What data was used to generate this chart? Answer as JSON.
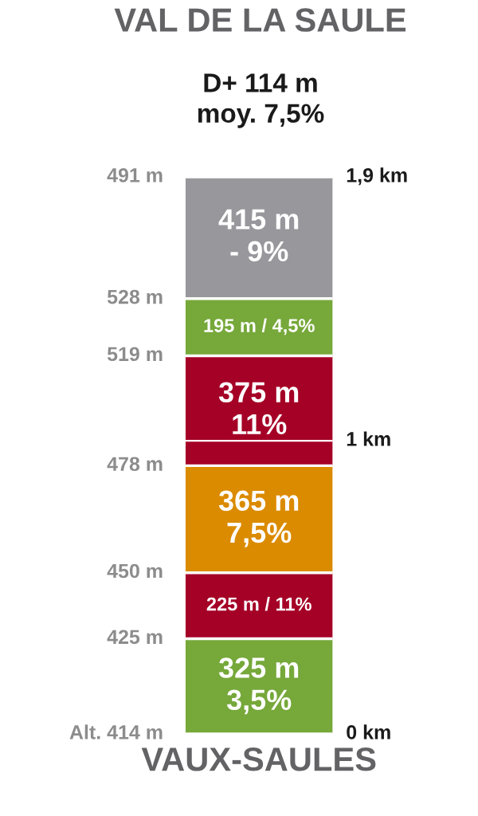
{
  "chart_data": {
    "type": "bar",
    "stacked": true,
    "title": "VAL DE LA SAULE",
    "subtitle": "D+ 114 m\nmoy. 7,5%",
    "xlabel": "VAUX-SAULES",
    "categories": [
      null
    ],
    "series": [
      {
        "color": "#76a83a",
        "values": [
          325
        ],
        "value_labels": [
          "325 m\n3,5%"
        ]
      },
      {
        "color": "#a50026",
        "values": [
          225
        ],
        "value_labels": [
          "225 m / 11%"
        ]
      },
      {
        "color": "#db8b00",
        "values": [
          365
        ],
        "value_labels": [
          "365 m\n7,5%"
        ]
      },
      {
        "color": "#a50026",
        "values": [
          375
        ],
        "value_labels": [
          "375 m\n11%"
        ]
      },
      {
        "color": "#76a83a",
        "values": [
          195
        ],
        "value_labels": [
          "195 m / 4,5%"
        ]
      },
      {
        "color": "#98979c",
        "values": [
          415
        ],
        "value_labels": [
          "415 m\n- 9%"
        ]
      }
    ],
    "ylim": [
      0,
      1900
    ],
    "ref_lines": [
      {
        "axis": "y",
        "value": 0,
        "label": "0 km"
      },
      {
        "axis": "y",
        "value": 1000,
        "label": "1 km"
      },
      {
        "axis": "y",
        "value": 1900,
        "label": "1,9 km"
      },
      {
        "axis": "y",
        "value": 0,
        "label": "Alt. 414 m",
        "color": "#ffffff"
      },
      {
        "axis": "y",
        "value": 325,
        "label": "425 m",
        "color": "#ffffff"
      },
      {
        "axis": "y",
        "value": 550,
        "label": "450 m",
        "color": "#ffffff"
      },
      {
        "axis": "y",
        "value": 915,
        "label": "478 m",
        "color": "#ffffff"
      },
      {
        "axis": "y",
        "value": 1290,
        "label": "519 m",
        "color": "#ffffff"
      },
      {
        "axis": "y",
        "value": 1485,
        "label": "528 m",
        "color": "#ffffff"
      },
      {
        "axis": "y",
        "value": 1900,
        "label": "491 m",
        "color": "#ffffff"
      }
    ],
    "grid": false
  }
}
